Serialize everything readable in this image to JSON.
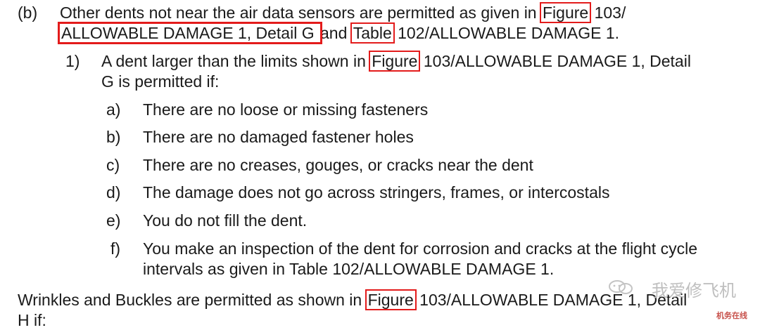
{
  "b": {
    "marker": "(b)",
    "l1": {
      "t1": "Other dents not near the air data sensors are permitted as given in ",
      "link1": "Figure",
      "t2": " 103/"
    },
    "l2": {
      "link1": "ALLOWABLE DAMAGE 1, Detail G ",
      "t1": "and ",
      "link2": "Table",
      "t2": " 102/ALLOWABLE DAMAGE 1."
    }
  },
  "item1": {
    "marker": "1)",
    "l1": {
      "t1": "A dent larger than the limits shown in ",
      "link1": "Figure",
      "t2": " 103/ALLOWABLE DAMAGE 1, Detail"
    },
    "l2": "G is permitted if:"
  },
  "subs": [
    {
      "marker": "a)",
      "text": "There are no loose or missing fasteners"
    },
    {
      "marker": "b)",
      "text": "There are no damaged fastener holes"
    },
    {
      "marker": "c)",
      "text": "There are no creases, gouges, or cracks near the dent"
    },
    {
      "marker": "d)",
      "text": "The damage does not go across stringers, frames, or intercostals"
    },
    {
      "marker": "e)",
      "text": "You do not fill the dent."
    },
    {
      "marker": "f)",
      "text": "You make an inspection of the dent for corrosion and cracks at the flight cycle"
    }
  ],
  "sub_f_l2": "intervals as given in Table 102/ALLOWABLE DAMAGE 1.",
  "wrinkles": {
    "t1": "Wrinkles and Buckles are permitted as shown in ",
    "link1": "Figure",
    "t2": " 103/ALLOWABLE DAMAGE 1, Detail",
    "l2": "H if:"
  },
  "watermark": {
    "name": "我爱修飞机",
    "site": "机务在线",
    "icon": "wechat-icon"
  }
}
